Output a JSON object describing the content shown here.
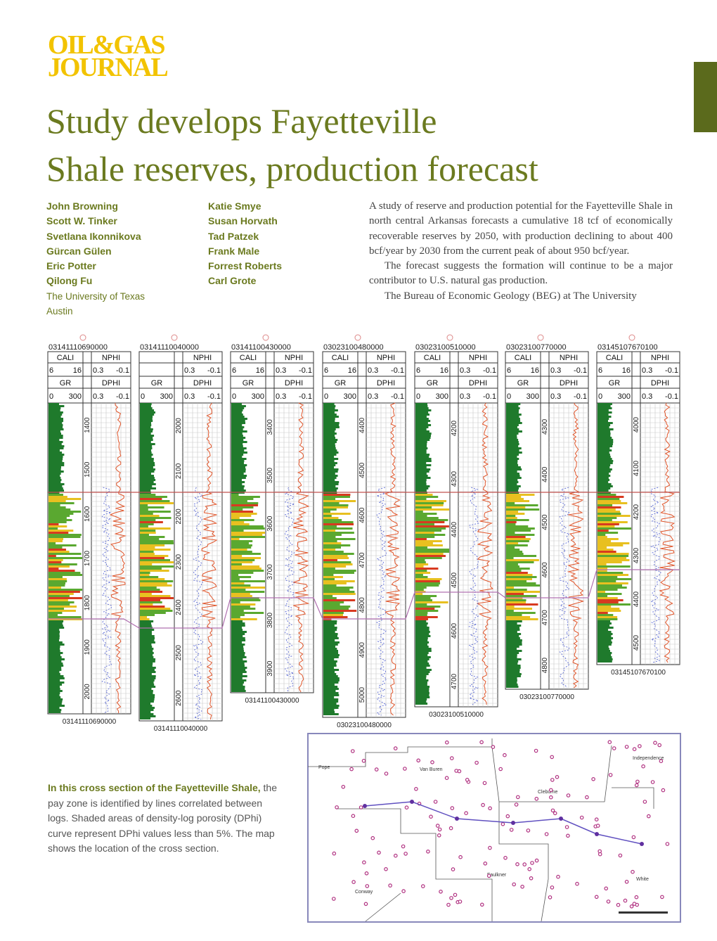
{
  "header": {
    "logo_line1": "OIL&GAS",
    "logo_line2": "JOURNAL",
    "title_line1": "Study develops Fayetteville",
    "title_line2": "Shale reserves, production forecast"
  },
  "authors": {
    "col1": [
      "John Browning",
      "Scott W. Tinker",
      "Svetlana Ikonnikova",
      "Gürcan Gülen",
      "Eric Potter",
      "Qilong Fu"
    ],
    "col2": [
      "Katie Smye",
      "Susan Horvath",
      "Tad Patzek",
      "Frank Male",
      "Forrest Roberts",
      "Carl Grote"
    ],
    "affiliation": [
      "The University of Texas",
      "Austin"
    ]
  },
  "body": [
    "A study of reserve and production potential for the Fayetteville Shale in north central Arkansas forecasts a cumulative 18 tcf of economically recoverable reserves by 2050, with production declining to about 400 bcf/year by 2030 from the current peak of about 950 bcf/year.",
    "The forecast suggests the formation will continue to be a major contributor to U.S. natural gas production.",
    "The Bureau of Economic Geology (BEG) at The University"
  ],
  "figure": {
    "curves": {
      "cali": "CALI",
      "nphi": "NPHI",
      "gr": "GR",
      "dphi": "DPHI",
      "cali_scale": [
        "6",
        "16"
      ],
      "nphi_scale": [
        "0.3",
        "-0.1"
      ],
      "gr_scale": [
        "0",
        "300"
      ],
      "dphi_scale": [
        "0.3",
        "-0.1"
      ]
    },
    "wells": [
      {
        "id": "03141110690000",
        "has_cali": true,
        "depths": [
          "1400",
          "1500",
          "1600",
          "1700",
          "1800",
          "1900",
          "2000"
        ],
        "footer": "03141110690000"
      },
      {
        "id": "03141110040000",
        "has_cali": false,
        "depths": [
          "2000",
          "2100",
          "2200",
          "2300",
          "2400",
          "2500",
          "2600"
        ],
        "footer": "03141110040000"
      },
      {
        "id": "03141100430000",
        "has_cali": true,
        "depths": [
          "3400",
          "3500",
          "3600",
          "3700",
          "3800",
          "3900"
        ],
        "footer": "03141100430000"
      },
      {
        "id": "03023100480000",
        "has_cali": true,
        "depths": [
          "4400",
          "4500",
          "4600",
          "4700",
          "4800",
          "4900",
          "5000"
        ],
        "footer": "03023100480000"
      },
      {
        "id": "03023100510000",
        "has_cali": true,
        "depths": [
          "4200",
          "4300",
          "4400",
          "4500",
          "4600",
          "4700"
        ],
        "footer": "03023100510000"
      },
      {
        "id": "03023100770000",
        "has_cali": true,
        "depths": [
          "4300",
          "4400",
          "4500",
          "4600",
          "4700",
          "4800"
        ],
        "footer": "03023100770000"
      },
      {
        "id": "03145107670100",
        "has_cali": true,
        "depths": [
          "4000",
          "4100",
          "4200",
          "4300",
          "4400",
          "4500"
        ],
        "footer": "03145107670100"
      }
    ],
    "map": {
      "counties": [
        "Pope",
        "Van Buren",
        "Independence",
        "Cleburne",
        "Conway",
        "Faulkner",
        "White"
      ]
    }
  },
  "caption": {
    "lead": "In this cross section of the Fayetteville Shale,",
    "text": " the pay zone is identified by lines correlated between logs. Shaded areas of density-log porosity (DPhi) curve represent DPhi values less than 5%. The map shows the location of the cross section."
  }
}
